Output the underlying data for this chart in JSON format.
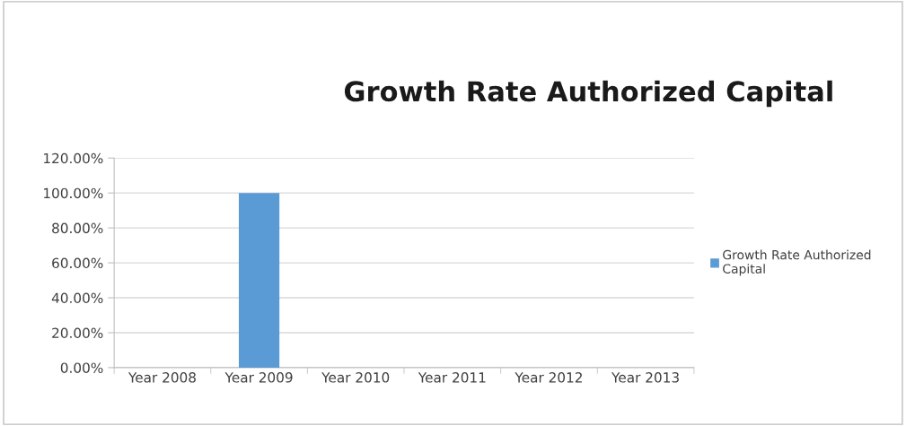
{
  "chart_data": {
    "type": "bar",
    "title": "Growth Rate Authorized Capital",
    "categories": [
      "Year 2008",
      "Year 2009",
      "Year 2010",
      "Year 2011",
      "Year 2012",
      "Year 2013"
    ],
    "series": [
      {
        "name": "Growth Rate Authorized Capital",
        "color": "#5b9bd5",
        "values": [
          0,
          100,
          0,
          0,
          0,
          0
        ]
      }
    ],
    "ylim": [
      0,
      120
    ],
    "yticks": [
      {
        "value": 0,
        "label": "0.00%"
      },
      {
        "value": 20,
        "label": "20.00%"
      },
      {
        "value": 40,
        "label": "40.00%"
      },
      {
        "value": 60,
        "label": "60.00%"
      },
      {
        "value": 80,
        "label": "80.00%"
      },
      {
        "value": 100,
        "label": "100.00%"
      },
      {
        "value": 120,
        "label": "120.00%"
      }
    ],
    "grid": "y",
    "legend": "right"
  }
}
